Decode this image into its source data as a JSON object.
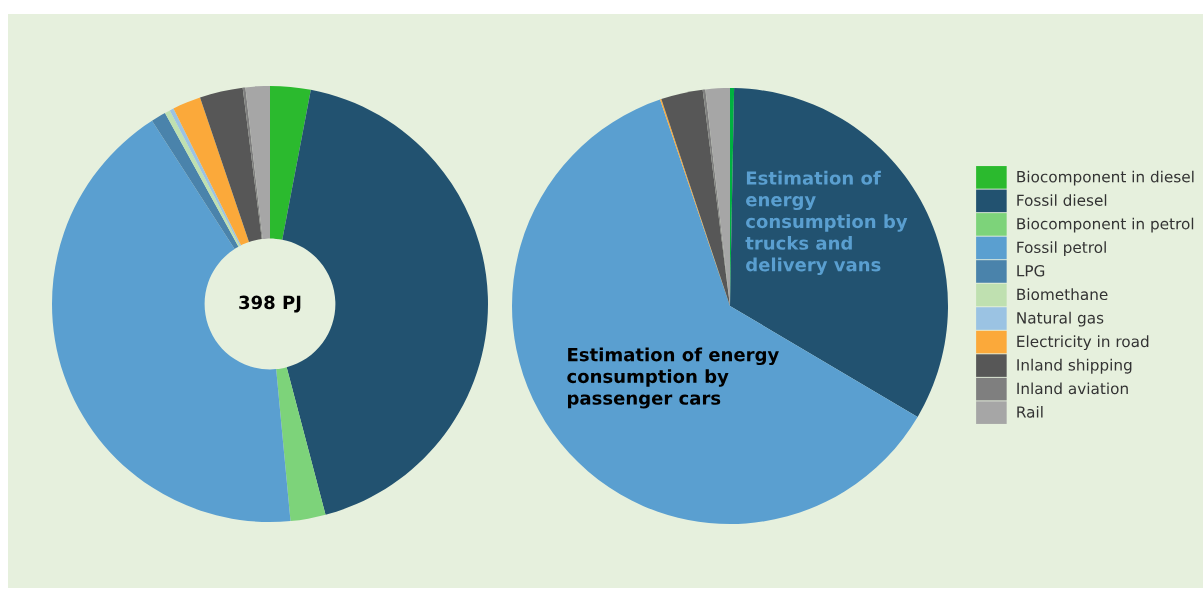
{
  "chart_data": [
    {
      "type": "donut",
      "categories": [
        "Biocomponent in diesel",
        "Fossil diesel",
        "Biocomponent in petrol",
        "Fossil petrol",
        "LPG",
        "Biomethane",
        "Natural gas",
        "Electricity in road",
        "Inland shipping",
        "Inland aviation",
        "Rail"
      ],
      "values": [
        3,
        42.9,
        2.6,
        42.4,
        1.1,
        0.4,
        0.3,
        2.1,
        3.2,
        0.2,
        1.8
      ],
      "colors": [
        "#2bba2e",
        "#225270",
        "#7dd37a",
        "#5a9fd0",
        "#4a83ab",
        "#bfe0b0",
        "#9bc3e3",
        "#fba93a",
        "#575757",
        "#7f7f7f",
        "#a6a6a6"
      ],
      "annotations": [
        "398 PJ"
      ],
      "legend": "right"
    },
    {
      "type": "pie",
      "categories": [
        null,
        null,
        null,
        null,
        null,
        null,
        null,
        null,
        null,
        null,
        null
      ],
      "values": [
        0.3,
        33.2,
        null,
        61.3,
        null,
        null,
        null,
        0.1,
        3.1,
        0.2,
        1.8
      ],
      "colors": [
        "#00b140",
        "#225270",
        "#7dd37a",
        "#5a9fd0",
        "#4a83ab",
        "#bfe0b0",
        "#9bc3e3",
        "#fba93a",
        "#575757",
        "#7f7f7f",
        "#a6a6a6"
      ],
      "annotations": [
        "Estimation of\nenergy\nconsumption by\ntrucks and\ndelivery vans",
        "Estimation of energy\nconsumption by\npassenger cars"
      ],
      "legend": false
    }
  ]
}
